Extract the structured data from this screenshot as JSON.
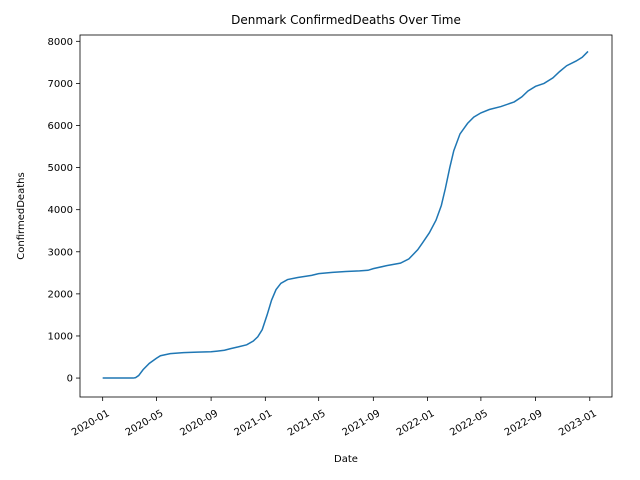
{
  "chart_data": {
    "type": "line",
    "title": "Denmark  ConfirmedDeaths Over Time",
    "xlabel": "Date",
    "ylabel": "ConfirmedDeaths",
    "x_ticks": [
      "2020-01",
      "2020-05",
      "2020-09",
      "2021-01",
      "2021-05",
      "2021-09",
      "2022-01",
      "2022-05",
      "2022-09",
      "2023-01"
    ],
    "y_ticks": [
      0,
      1000,
      2000,
      3000,
      4000,
      5000,
      6000,
      7000,
      8000
    ],
    "xlim": [
      "2019-11-11",
      "2023-02-20"
    ],
    "ylim": [
      -450,
      8150
    ],
    "grid": false,
    "series": [
      {
        "color": "#1f77b4",
        "points": [
          [
            "2020-01-01",
            0
          ],
          [
            "2020-03-10",
            0
          ],
          [
            "2020-03-15",
            10
          ],
          [
            "2020-03-22",
            60
          ],
          [
            "2020-04-01",
            200
          ],
          [
            "2020-04-15",
            350
          ],
          [
            "2020-05-01",
            470
          ],
          [
            "2020-05-10",
            530
          ],
          [
            "2020-06-01",
            580
          ],
          [
            "2020-07-01",
            605
          ],
          [
            "2020-08-01",
            615
          ],
          [
            "2020-09-01",
            625
          ],
          [
            "2020-09-15",
            640
          ],
          [
            "2020-10-01",
            660
          ],
          [
            "2020-10-15",
            700
          ],
          [
            "2020-11-01",
            740
          ],
          [
            "2020-11-20",
            790
          ],
          [
            "2020-12-05",
            880
          ],
          [
            "2020-12-15",
            980
          ],
          [
            "2020-12-25",
            1150
          ],
          [
            "2021-01-05",
            1500
          ],
          [
            "2021-01-15",
            1850
          ],
          [
            "2021-01-25",
            2100
          ],
          [
            "2021-02-05",
            2250
          ],
          [
            "2021-02-20",
            2340
          ],
          [
            "2021-03-15",
            2390
          ],
          [
            "2021-04-15",
            2440
          ],
          [
            "2021-05-01",
            2480
          ],
          [
            "2021-06-01",
            2510
          ],
          [
            "2021-07-01",
            2530
          ],
          [
            "2021-08-01",
            2545
          ],
          [
            "2021-08-20",
            2560
          ],
          [
            "2021-09-01",
            2600
          ],
          [
            "2021-10-01",
            2670
          ],
          [
            "2021-11-01",
            2730
          ],
          [
            "2021-11-20",
            2830
          ],
          [
            "2021-12-10",
            3050
          ],
          [
            "2021-12-20",
            3200
          ],
          [
            "2022-01-05",
            3450
          ],
          [
            "2022-01-20",
            3750
          ],
          [
            "2022-02-01",
            4100
          ],
          [
            "2022-02-10",
            4500
          ],
          [
            "2022-02-20",
            5000
          ],
          [
            "2022-03-01",
            5400
          ],
          [
            "2022-03-15",
            5800
          ],
          [
            "2022-04-01",
            6050
          ],
          [
            "2022-04-15",
            6200
          ],
          [
            "2022-05-01",
            6300
          ],
          [
            "2022-05-20",
            6380
          ],
          [
            "2022-06-15",
            6450
          ],
          [
            "2022-07-15",
            6560
          ],
          [
            "2022-08-01",
            6680
          ],
          [
            "2022-08-15",
            6820
          ],
          [
            "2022-09-01",
            6930
          ],
          [
            "2022-09-20",
            7000
          ],
          [
            "2022-10-10",
            7130
          ],
          [
            "2022-10-25",
            7280
          ],
          [
            "2022-11-10",
            7420
          ],
          [
            "2022-12-01",
            7530
          ],
          [
            "2022-12-15",
            7620
          ],
          [
            "2022-12-28",
            7760
          ]
        ]
      }
    ]
  }
}
